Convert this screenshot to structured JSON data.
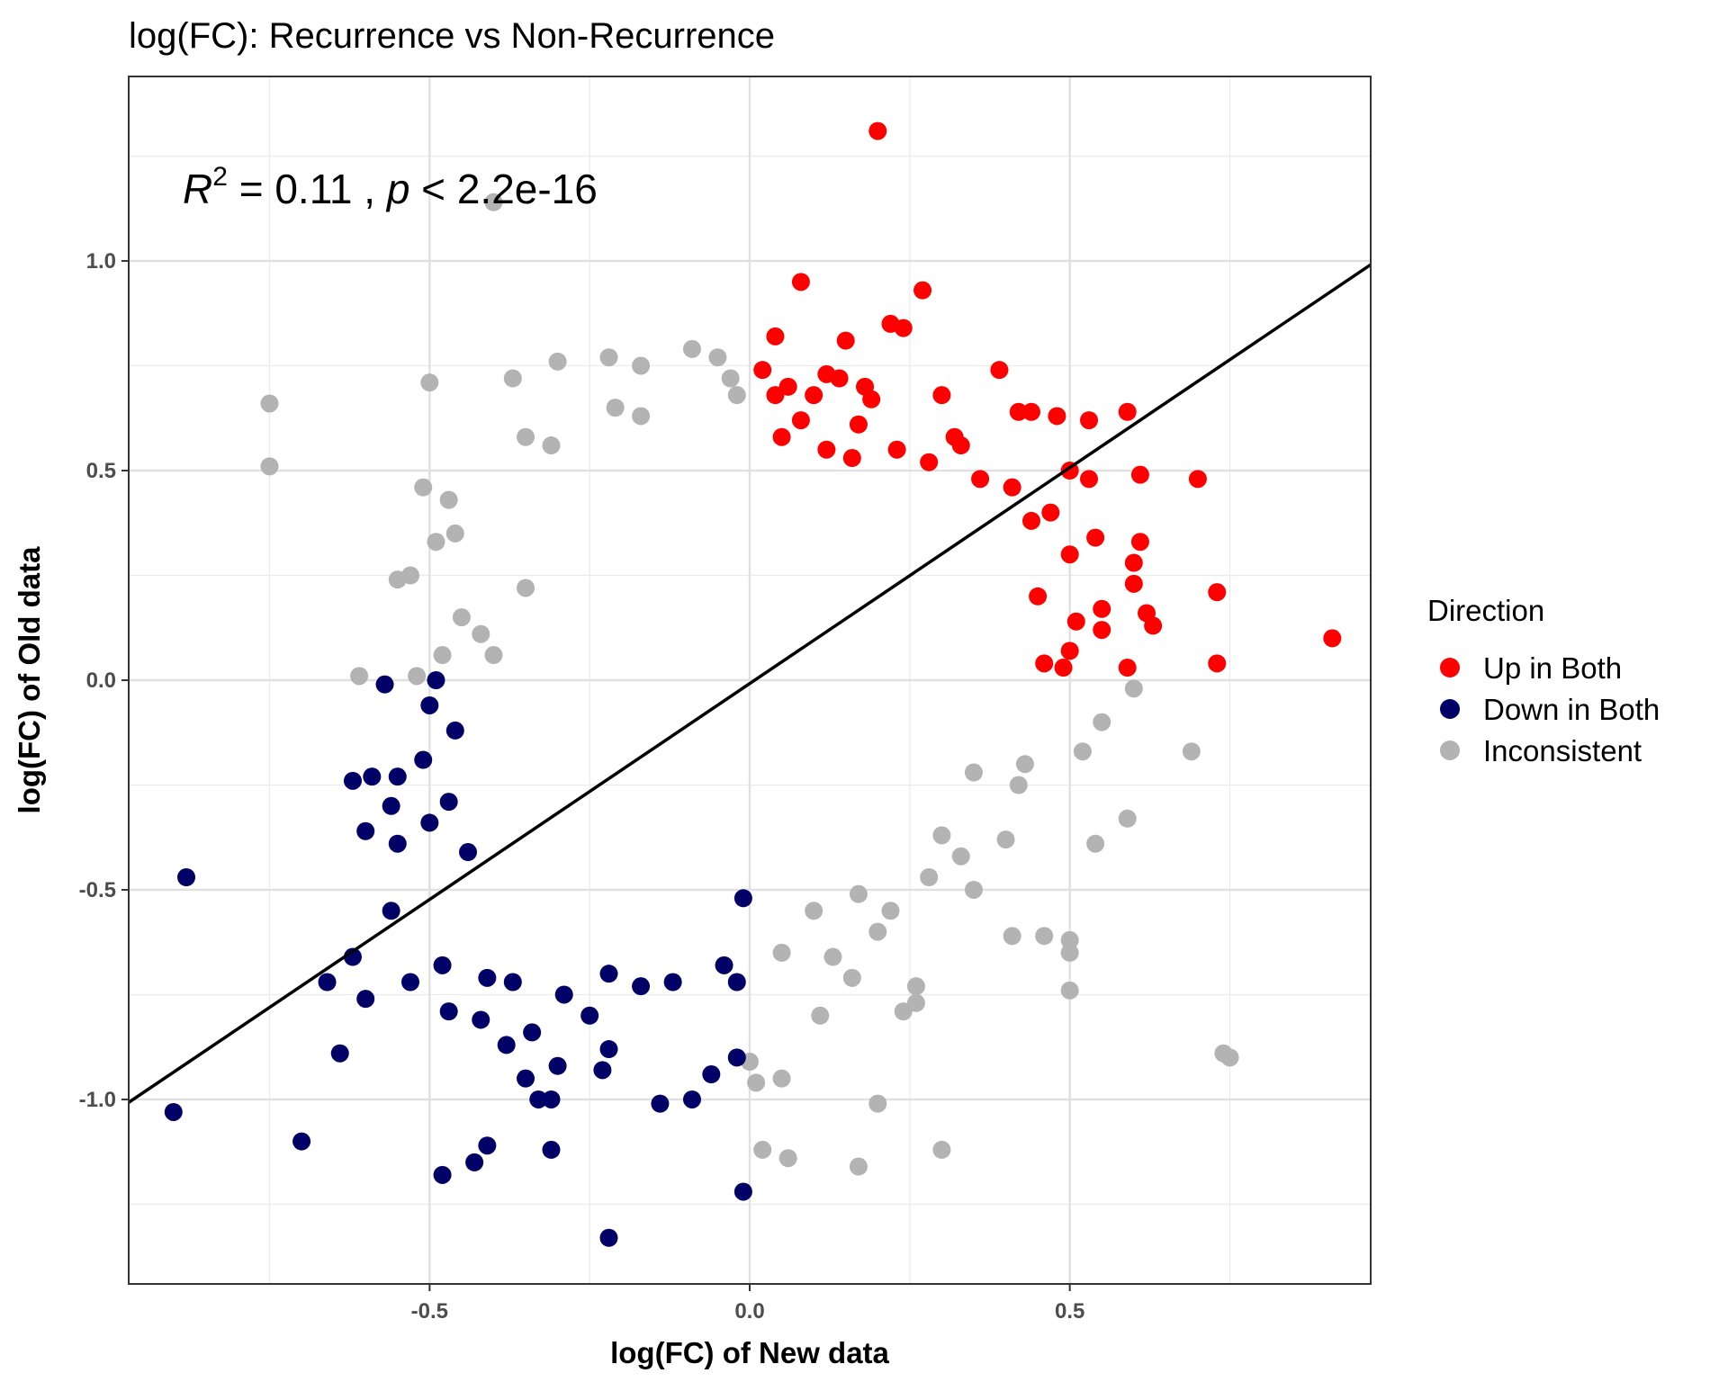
{
  "chart_data": {
    "type": "scatter",
    "title": "log(FC): Recurrence vs Non-Recurrence",
    "xlabel": "log(FC) of New data",
    "ylabel": "log(FC) of Old data",
    "xlim": [
      -0.97,
      0.97
    ],
    "ylim": [
      -1.44,
      1.44
    ],
    "x_ticks": [
      -0.5,
      0.0,
      0.5
    ],
    "x_tick_labels": [
      "-0.5",
      "0.0",
      "0.5"
    ],
    "y_ticks": [
      -1.0,
      -0.5,
      0.0,
      0.5,
      1.0
    ],
    "y_tick_labels": [
      "-1.0",
      "-0.5",
      "0.0",
      "0.5",
      "1.0"
    ],
    "grid": true,
    "annotation": {
      "r_symbol": "R",
      "r_exponent": "2",
      "r_value": " = 0.11 , ",
      "p_symbol": "p",
      "p_value": " < 2.2e-16"
    },
    "regression_line": {
      "slope": 1.03,
      "intercept": -0.008
    },
    "legend": {
      "title": "Direction",
      "position": "right",
      "entries": [
        {
          "label": "Up in Both",
          "color": "#FF0000"
        },
        {
          "label": "Down in Both",
          "color": "#000066"
        },
        {
          "label": "Inconsistent",
          "color": "#B3B3B3"
        }
      ]
    },
    "series": [
      {
        "name": "Up in Both",
        "color": "#FF0000",
        "points": [
          [
            0.2,
            1.31
          ],
          [
            0.08,
            0.95
          ],
          [
            0.27,
            0.93
          ],
          [
            0.22,
            0.85
          ],
          [
            0.24,
            0.84
          ],
          [
            0.04,
            0.82
          ],
          [
            0.15,
            0.81
          ],
          [
            0.39,
            0.74
          ],
          [
            0.02,
            0.74
          ],
          [
            0.12,
            0.73
          ],
          [
            0.14,
            0.72
          ],
          [
            0.06,
            0.7
          ],
          [
            0.18,
            0.7
          ],
          [
            0.04,
            0.68
          ],
          [
            0.1,
            0.68
          ],
          [
            0.3,
            0.68
          ],
          [
            0.19,
            0.67
          ],
          [
            0.08,
            0.62
          ],
          [
            0.17,
            0.61
          ],
          [
            0.42,
            0.64
          ],
          [
            0.44,
            0.64
          ],
          [
            0.48,
            0.63
          ],
          [
            0.53,
            0.62
          ],
          [
            0.59,
            0.64
          ],
          [
            0.23,
            0.55
          ],
          [
            0.33,
            0.56
          ],
          [
            0.5,
            0.5
          ],
          [
            0.53,
            0.48
          ],
          [
            0.61,
            0.49
          ],
          [
            0.7,
            0.48
          ],
          [
            0.47,
            0.4
          ],
          [
            0.5,
            0.3
          ],
          [
            0.54,
            0.34
          ],
          [
            0.6,
            0.28
          ],
          [
            0.61,
            0.33
          ],
          [
            0.6,
            0.23
          ],
          [
            0.73,
            0.21
          ],
          [
            0.91,
            0.1
          ],
          [
            0.55,
            0.17
          ],
          [
            0.62,
            0.16
          ],
          [
            0.63,
            0.13
          ],
          [
            0.55,
            0.12
          ],
          [
            0.59,
            0.03
          ],
          [
            0.73,
            0.04
          ],
          [
            0.5,
            0.07
          ],
          [
            0.49,
            0.03
          ],
          [
            0.46,
            0.04
          ],
          [
            0.45,
            0.2
          ],
          [
            0.51,
            0.14
          ],
          [
            0.41,
            0.46
          ],
          [
            0.44,
            0.38
          ],
          [
            0.36,
            0.48
          ],
          [
            0.32,
            0.58
          ],
          [
            0.28,
            0.52
          ],
          [
            0.12,
            0.55
          ],
          [
            0.16,
            0.53
          ],
          [
            0.05,
            0.58
          ]
        ]
      },
      {
        "name": "Down in Both",
        "color": "#000066",
        "points": [
          [
            -0.88,
            -0.47
          ],
          [
            -0.9,
            -1.03
          ],
          [
            -0.7,
            -1.1
          ],
          [
            -0.62,
            -0.66
          ],
          [
            -0.64,
            -0.89
          ],
          [
            -0.66,
            -0.72
          ],
          [
            -0.6,
            -0.76
          ],
          [
            -0.56,
            -0.55
          ],
          [
            -0.53,
            -0.72
          ],
          [
            -0.48,
            -0.68
          ],
          [
            -0.47,
            -0.79
          ],
          [
            -0.48,
            -1.18
          ],
          [
            -0.42,
            -0.81
          ],
          [
            -0.43,
            -1.15
          ],
          [
            -0.41,
            -1.11
          ],
          [
            -0.38,
            -0.87
          ],
          [
            -0.35,
            -0.95
          ],
          [
            -0.33,
            -1.0
          ],
          [
            -0.31,
            -1.0
          ],
          [
            -0.3,
            -0.92
          ],
          [
            -0.31,
            -1.12
          ],
          [
            -0.22,
            -1.33
          ],
          [
            -0.23,
            -0.93
          ],
          [
            -0.22,
            -0.88
          ],
          [
            -0.14,
            -1.01
          ],
          [
            -0.09,
            -1.0
          ],
          [
            -0.06,
            -0.94
          ],
          [
            -0.02,
            -0.9
          ],
          [
            -0.01,
            -1.22
          ],
          [
            -0.6,
            -0.36
          ],
          [
            -0.55,
            -0.39
          ],
          [
            -0.56,
            -0.3
          ],
          [
            -0.62,
            -0.24
          ],
          [
            -0.59,
            -0.23
          ],
          [
            -0.55,
            -0.23
          ],
          [
            -0.51,
            -0.19
          ],
          [
            -0.5,
            -0.34
          ],
          [
            -0.47,
            -0.29
          ],
          [
            -0.5,
            -0.06
          ],
          [
            -0.46,
            -0.12
          ],
          [
            -0.57,
            -0.01
          ],
          [
            -0.49,
            0.0
          ],
          [
            -0.44,
            -0.41
          ],
          [
            -0.41,
            -0.71
          ],
          [
            -0.37,
            -0.72
          ],
          [
            -0.34,
            -0.84
          ],
          [
            -0.29,
            -0.75
          ],
          [
            -0.25,
            -0.8
          ],
          [
            -0.22,
            -0.7
          ],
          [
            -0.17,
            -0.73
          ],
          [
            -0.12,
            -0.72
          ],
          [
            -0.04,
            -0.68
          ],
          [
            -0.02,
            -0.72
          ],
          [
            -0.01,
            -0.52
          ]
        ]
      },
      {
        "name": "Inconsistent",
        "color": "#B3B3B3",
        "points": [
          [
            -0.75,
            0.66
          ],
          [
            -0.75,
            0.51
          ],
          [
            -0.5,
            0.71
          ],
          [
            -0.37,
            0.72
          ],
          [
            -0.3,
            0.76
          ],
          [
            -0.22,
            0.77
          ],
          [
            -0.17,
            0.75
          ],
          [
            -0.09,
            0.79
          ],
          [
            -0.05,
            0.77
          ],
          [
            -0.03,
            0.72
          ],
          [
            -0.02,
            0.68
          ],
          [
            -0.21,
            0.65
          ],
          [
            -0.17,
            0.63
          ],
          [
            -0.35,
            0.58
          ],
          [
            -0.31,
            0.56
          ],
          [
            -0.51,
            0.46
          ],
          [
            -0.47,
            0.43
          ],
          [
            -0.4,
            1.14
          ],
          [
            -0.46,
            0.35
          ],
          [
            -0.49,
            0.33
          ],
          [
            -0.55,
            0.24
          ],
          [
            -0.53,
            0.25
          ],
          [
            -0.42,
            0.11
          ],
          [
            -0.4,
            0.06
          ],
          [
            -0.52,
            0.01
          ],
          [
            -0.48,
            0.06
          ],
          [
            -0.61,
            0.01
          ],
          [
            -0.45,
            0.15
          ],
          [
            -0.35,
            0.22
          ],
          [
            0.74,
            -0.89
          ],
          [
            0.75,
            -0.9
          ],
          [
            0.69,
            -0.17
          ],
          [
            0.6,
            -0.02
          ],
          [
            0.59,
            -0.33
          ],
          [
            0.54,
            -0.39
          ],
          [
            0.5,
            -0.62
          ],
          [
            0.5,
            -0.65
          ],
          [
            0.5,
            -0.74
          ],
          [
            0.46,
            -0.61
          ],
          [
            0.41,
            -0.61
          ],
          [
            0.24,
            -0.79
          ],
          [
            0.26,
            -0.77
          ],
          [
            0.26,
            -0.73
          ],
          [
            0.2,
            -1.01
          ],
          [
            0.3,
            -1.12
          ],
          [
            0.17,
            -1.16
          ],
          [
            0.06,
            -1.14
          ],
          [
            0.02,
            -1.12
          ],
          [
            0.11,
            -0.8
          ],
          [
            0.16,
            -0.71
          ],
          [
            0.05,
            -0.95
          ],
          [
            0.01,
            -0.96
          ],
          [
            0.0,
            -0.91
          ],
          [
            0.05,
            -0.65
          ],
          [
            0.13,
            -0.66
          ],
          [
            0.35,
            -0.5
          ],
          [
            0.33,
            -0.42
          ],
          [
            0.4,
            -0.38
          ],
          [
            0.43,
            -0.2
          ],
          [
            0.52,
            -0.17
          ],
          [
            0.55,
            -0.1
          ],
          [
            0.42,
            -0.25
          ],
          [
            0.35,
            -0.22
          ],
          [
            0.3,
            -0.37
          ],
          [
            0.22,
            -0.55
          ],
          [
            0.28,
            -0.47
          ],
          [
            0.1,
            -0.55
          ],
          [
            0.17,
            -0.51
          ],
          [
            0.2,
            -0.6
          ]
        ]
      }
    ]
  }
}
